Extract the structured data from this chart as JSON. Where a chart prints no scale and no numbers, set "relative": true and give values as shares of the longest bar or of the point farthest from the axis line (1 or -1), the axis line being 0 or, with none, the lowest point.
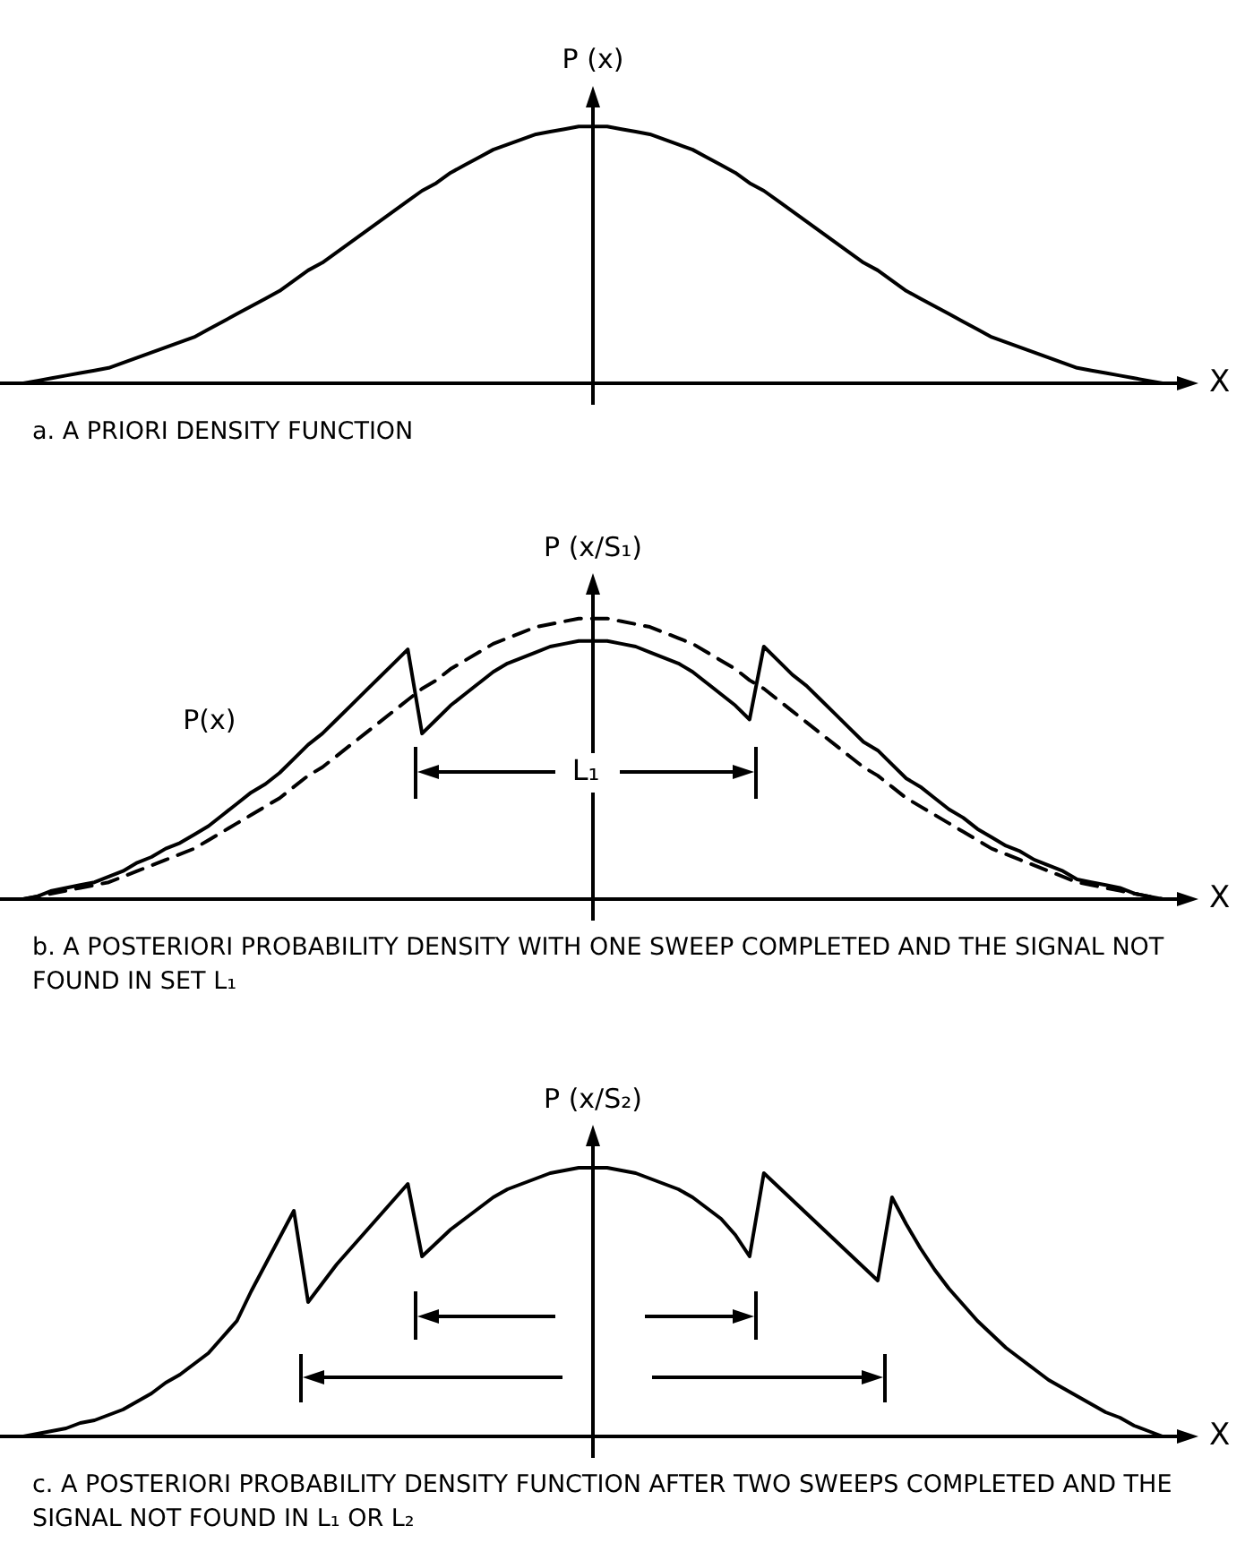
{
  "chart_data": [
    {
      "type": "line",
      "title": "a. A PRIORI DENSITY FUNCTION",
      "xlabel": "X",
      "ylabel": "P (x)",
      "relative": true,
      "marker": "none",
      "categories": [
        null,
        null,
        null,
        null,
        null,
        null,
        null,
        null,
        null,
        null,
        null,
        null,
        null,
        null,
        null,
        null,
        null,
        null,
        null,
        null,
        null,
        null,
        null,
        null,
        null,
        null,
        null,
        null,
        null,
        null,
        null,
        null,
        null,
        null,
        null,
        null,
        null,
        null,
        null,
        null,
        null,
        null,
        null,
        null,
        null,
        null,
        null,
        null,
        null,
        null,
        null,
        null,
        null,
        null,
        null,
        null,
        null,
        null,
        null,
        null,
        null,
        null,
        null,
        null,
        null,
        null,
        null,
        null,
        null,
        null,
        null,
        null,
        null,
        null,
        null,
        null,
        null,
        null,
        null,
        null,
        null
      ],
      "series": [
        {
          "color": "#000000",
          "line_style": "solid",
          "values": [
            0,
            0.01,
            0.02,
            0.03,
            0.04,
            0.05,
            0.06,
            0.08,
            0.1,
            0.12,
            0.14,
            0.16,
            0.18,
            0.21,
            0.24,
            0.27,
            0.3,
            0.33,
            0.36,
            0.4,
            0.44,
            0.47,
            0.51,
            0.55,
            0.59,
            0.63,
            0.67,
            0.71,
            0.75,
            0.78,
            0.82,
            0.85,
            0.88,
            0.91,
            0.93,
            0.95,
            0.97,
            0.98,
            0.99,
            1,
            1,
            1,
            0.99,
            0.98,
            0.97,
            0.95,
            0.93,
            0.91,
            0.88,
            0.85,
            0.82,
            0.78,
            0.75,
            0.71,
            0.67,
            0.63,
            0.59,
            0.55,
            0.51,
            0.47,
            0.44,
            0.4,
            0.36,
            0.33,
            0.3,
            0.27,
            0.24,
            0.21,
            0.18,
            0.16,
            0.14,
            0.12,
            0.1,
            0.08,
            0.06,
            0.05,
            0.04,
            0.03,
            0.02,
            0.01,
            0
          ]
        }
      ]
    },
    {
      "type": "line",
      "title": "b. A POSTERIORI PROBABILITY DENSITY WITH ONE SWEEP COMPLETED AND THE SIGNAL NOT FOUND IN SET L₁",
      "xlabel": "X",
      "ylabel": "P (x/S₁)",
      "relative": true,
      "marker": "none",
      "annotations": [
        "L₁"
      ],
      "categories": [
        null,
        null,
        null,
        null,
        null,
        null,
        null,
        null,
        null,
        null,
        null,
        null,
        null,
        null,
        null,
        null,
        null,
        null,
        null,
        null,
        null,
        null,
        null,
        null,
        null,
        null,
        null,
        null,
        null,
        null,
        null,
        null,
        null,
        null,
        null,
        null,
        null,
        null,
        null,
        null,
        null,
        null,
        null,
        null,
        null,
        null,
        null,
        null,
        null,
        null,
        null,
        null,
        null,
        null,
        null,
        null,
        null,
        null,
        null,
        null,
        null,
        null,
        null,
        null,
        null,
        null,
        null,
        null,
        null,
        null,
        null,
        null,
        null,
        null,
        null,
        null,
        null,
        null,
        null,
        null,
        null
      ],
      "series": [
        {
          "color": "#000000",
          "line_style": "solid",
          "values": [
            0,
            0.01,
            0.03,
            0.04,
            0.05,
            0.06,
            0.08,
            0.1,
            0.13,
            0.15,
            0.18,
            0.2,
            0.23,
            0.26,
            0.3,
            0.34,
            0.38,
            0.41,
            0.45,
            0.5,
            0.55,
            0.59,
            0.64,
            0.69,
            0.74,
            0.79,
            0.84,
            0.89,
            0.59,
            0.64,
            0.69,
            0.73,
            0.77,
            0.81,
            0.84,
            0.86,
            0.88,
            0.9,
            0.91,
            0.92,
            0.92,
            0.92,
            0.91,
            0.9,
            0.88,
            0.86,
            0.84,
            0.81,
            0.77,
            0.73,
            0.69,
            0.64,
            0.9,
            0.85,
            0.8,
            0.76,
            0.71,
            0.66,
            0.61,
            0.56,
            0.53,
            0.48,
            0.43,
            0.4,
            0.36,
            0.32,
            0.29,
            0.25,
            0.22,
            0.19,
            0.17,
            0.14,
            0.12,
            0.1,
            0.07,
            0.06,
            0.05,
            0.04,
            0.02,
            0.01,
            0
          ]
        },
        {
          "name": "P(x)",
          "color": "#000000",
          "line_style": "dashed",
          "values": [
            0,
            0.01,
            0.02,
            0.03,
            0.04,
            0.05,
            0.06,
            0.08,
            0.1,
            0.12,
            0.14,
            0.16,
            0.18,
            0.21,
            0.24,
            0.27,
            0.3,
            0.33,
            0.36,
            0.4,
            0.44,
            0.47,
            0.51,
            0.55,
            0.59,
            0.63,
            0.67,
            0.71,
            0.75,
            0.78,
            0.82,
            0.85,
            0.88,
            0.91,
            0.93,
            0.95,
            0.97,
            0.98,
            0.99,
            1,
            1,
            1,
            0.99,
            0.98,
            0.97,
            0.95,
            0.93,
            0.91,
            0.88,
            0.85,
            0.82,
            0.78,
            0.75,
            0.71,
            0.67,
            0.63,
            0.59,
            0.55,
            0.51,
            0.47,
            0.44,
            0.4,
            0.36,
            0.33,
            0.3,
            0.27,
            0.24,
            0.21,
            0.18,
            0.16,
            0.14,
            0.12,
            0.1,
            0.08,
            0.06,
            0.05,
            0.04,
            0.03,
            0.02,
            0.01,
            0
          ]
        }
      ]
    },
    {
      "type": "line",
      "title": "c. A POSTERIORI PROBABILITY DENSITY FUNCTION AFTER TWO SWEEPS COMPLETED AND THE SIGNAL NOT FOUND IN L₁ OR L₂",
      "xlabel": "X",
      "ylabel": "P (x/S₂)",
      "relative": true,
      "marker": "none",
      "categories": [
        null,
        null,
        null,
        null,
        null,
        null,
        null,
        null,
        null,
        null,
        null,
        null,
        null,
        null,
        null,
        null,
        null,
        null,
        null,
        null,
        null,
        null,
        null,
        null,
        null,
        null,
        null,
        null,
        null,
        null,
        null,
        null,
        null,
        null,
        null,
        null,
        null,
        null,
        null,
        null,
        null,
        null,
        null,
        null,
        null,
        null,
        null,
        null,
        null,
        null,
        null,
        null,
        null,
        null,
        null,
        null,
        null,
        null,
        null,
        null,
        null,
        null,
        null,
        null,
        null,
        null,
        null,
        null,
        null,
        null,
        null,
        null,
        null,
        null,
        null,
        null,
        null,
        null,
        null,
        null,
        null
      ],
      "series": [
        {
          "color": "#000000",
          "line_style": "solid",
          "values": [
            0,
            0.01,
            0.02,
            0.03,
            0.05,
            0.06,
            0.08,
            0.1,
            0.13,
            0.16,
            0.2,
            0.23,
            0.27,
            0.31,
            0.37,
            0.43,
            0.54,
            0.64,
            0.74,
            0.84,
            0.5,
            0.57,
            0.64,
            0.7,
            0.76,
            0.82,
            0.88,
            0.94,
            0.67,
            0.72,
            0.77,
            0.81,
            0.85,
            0.89,
            0.92,
            0.94,
            0.96,
            0.98,
            0.99,
            1,
            1,
            1,
            0.99,
            0.98,
            0.96,
            0.94,
            0.92,
            0.89,
            0.85,
            0.81,
            0.75,
            0.67,
            0.98,
            0.93,
            0.88,
            0.83,
            0.78,
            0.73,
            0.68,
            0.63,
            0.58,
            0.89,
            0.79,
            0.7,
            0.62,
            0.55,
            0.49,
            0.43,
            0.38,
            0.33,
            0.29,
            0.25,
            0.21,
            0.18,
            0.15,
            0.12,
            0.09,
            0.07,
            0.04,
            0.02,
            0
          ]
        }
      ]
    }
  ]
}
